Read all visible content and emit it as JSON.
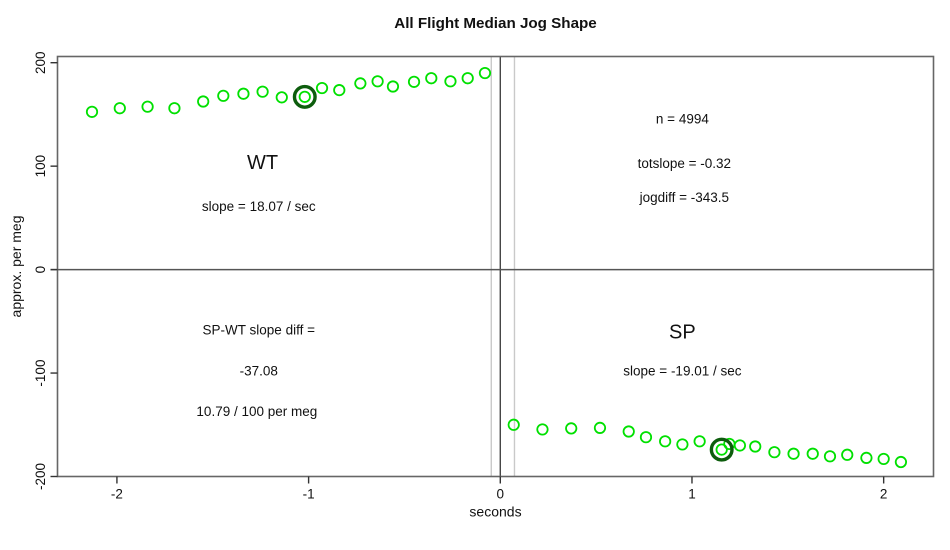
{
  "figure_title": "All Flight Median Jog Shape",
  "chart_data": {
    "type": "scatter",
    "title": "All Flight Median Jog Shape",
    "xlabel": "seconds",
    "ylabel": "approx. per meg",
    "xlim": [
      -2.31,
      2.26
    ],
    "ylim": [
      -200,
      206
    ],
    "x_ticks": [
      -2,
      -1,
      0,
      1,
      2
    ],
    "x_tick_labels": [
      "-2",
      "-1",
      "0",
      "1",
      "2"
    ],
    "y_ticks": [
      -200,
      -100,
      0,
      100,
      200
    ],
    "y_tick_labels": [
      "-200",
      "-100",
      "0",
      "100",
      "200"
    ],
    "grid": false,
    "legend": "none",
    "marker": "open-circle",
    "point_color": "#00e000",
    "highlight_color": "#0d5d0d",
    "axis_color": "#666666",
    "guide_line_color": "#c9c9c9",
    "zero_line_color": "#444444",
    "series": [
      {
        "name": "WT",
        "points": [
          [
            -2.13,
            152.5
          ],
          [
            -1.985,
            156
          ],
          [
            -1.84,
            157.5
          ],
          [
            -1.7,
            156
          ],
          [
            -1.55,
            162.5
          ],
          [
            -1.445,
            168
          ],
          [
            -1.34,
            170
          ],
          [
            -1.24,
            172
          ],
          [
            -1.14,
            166.5
          ],
          [
            -1.02,
            167
          ],
          [
            -0.93,
            175.5
          ],
          [
            -0.84,
            173.5
          ],
          [
            -0.73,
            180
          ],
          [
            -0.64,
            182
          ],
          [
            -0.56,
            177
          ],
          [
            -0.45,
            181.5
          ],
          [
            -0.36,
            185
          ],
          [
            -0.26,
            182
          ],
          [
            -0.17,
            185
          ],
          [
            -0.08,
            190
          ]
        ],
        "highlight_index": 9
      },
      {
        "name": "SP",
        "points": [
          [
            0.07,
            -150
          ],
          [
            0.22,
            -154.5
          ],
          [
            0.37,
            -153.5
          ],
          [
            0.52,
            -153
          ],
          [
            0.67,
            -156.5
          ],
          [
            0.76,
            -162
          ],
          [
            0.86,
            -166
          ],
          [
            0.95,
            -169
          ],
          [
            1.04,
            -166
          ],
          [
            1.155,
            -174
          ],
          [
            1.195,
            -168.5
          ],
          [
            1.25,
            -170
          ],
          [
            1.33,
            -171
          ],
          [
            1.43,
            -176.5
          ],
          [
            1.53,
            -178
          ],
          [
            1.63,
            -178
          ],
          [
            1.72,
            -180.5
          ],
          [
            1.81,
            -179
          ],
          [
            1.91,
            -182
          ],
          [
            2.0,
            -183
          ],
          [
            2.09,
            -186
          ]
        ],
        "highlight_index": 9
      }
    ],
    "reference_lines": {
      "horizontal_zero": 0,
      "vertical_dark": 0,
      "vertical_gray": [
        -0.047,
        0.074
      ]
    },
    "annotations": [
      {
        "id": "wt-group-label",
        "text": "WT",
        "t": -1.24,
        "v": 104,
        "style": "group"
      },
      {
        "id": "wt-slope",
        "text": "slope = 18.07 / sec",
        "t": -1.26,
        "v": 61,
        "style": "stat"
      },
      {
        "id": "n-count",
        "text": "n = 4994",
        "t": 0.95,
        "v": 146,
        "style": "stat"
      },
      {
        "id": "totslope",
        "text": "totslope = -0.32",
        "t": 0.96,
        "v": 103,
        "style": "stat"
      },
      {
        "id": "jogdiff",
        "text": "jogdiff = -343.5",
        "t": 0.96,
        "v": 70,
        "style": "stat"
      },
      {
        "id": "spwt-diff-line1",
        "text": "SP-WT slope diff =",
        "t": -1.26,
        "v": -58,
        "style": "stat"
      },
      {
        "id": "spwt-diff-line2",
        "text": "-37.08",
        "t": -1.26,
        "v": -98,
        "style": "stat"
      },
      {
        "id": "spwt-diff-line3",
        "text": "10.79 / 100 per meg",
        "t": -1.27,
        "v": -137,
        "style": "stat"
      },
      {
        "id": "sp-group-label",
        "text": "SP",
        "t": 0.95,
        "v": -60,
        "style": "group"
      },
      {
        "id": "sp-slope",
        "text": "slope = -19.01 / sec",
        "t": 0.95,
        "v": -98,
        "style": "stat"
      }
    ]
  }
}
